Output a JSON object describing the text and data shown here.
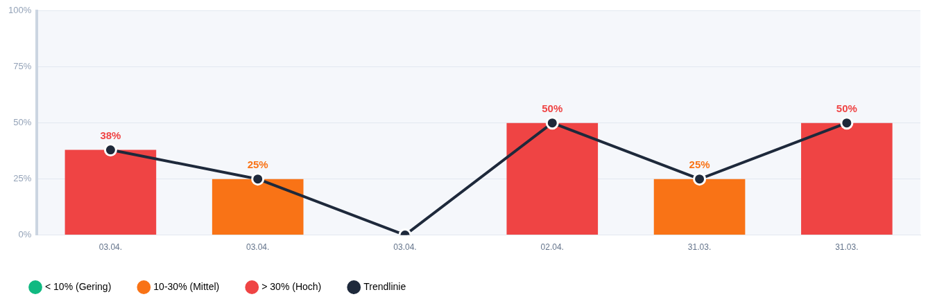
{
  "chart_data": {
    "type": "bar",
    "stacked": true,
    "categories": [
      "03.04.",
      "03.04.",
      "03.04.",
      "02.04.",
      "31.03.",
      "31.03."
    ],
    "ylim": [
      0,
      100
    ],
    "yticks": [
      {
        "value": 0,
        "label": "0%"
      },
      {
        "value": 25,
        "label": "25%"
      },
      {
        "value": 50,
        "label": "50%"
      },
      {
        "value": 75,
        "label": "75%"
      },
      {
        "value": 100,
        "label": "100%"
      }
    ],
    "grid": "y",
    "legend": "bottom left",
    "series": [
      {
        "name": "< 10% (Gering)",
        "color": "#10b981",
        "values": [
          null,
          null,
          0,
          null,
          null,
          null
        ]
      },
      {
        "name": "10-30% (Mittel)",
        "color": "#f97316",
        "values": [
          null,
          25,
          null,
          null,
          25,
          null
        ],
        "value_labels": [
          null,
          "25%",
          null,
          null,
          "25%",
          null
        ]
      },
      {
        "name": "> 30% (Hoch)",
        "color": "#ef4444",
        "values": [
          38,
          null,
          null,
          50,
          null,
          50
        ],
        "value_labels": [
          "38%",
          null,
          null,
          "50%",
          null,
          "50%"
        ]
      },
      {
        "name": "Trendlinie",
        "type": "line",
        "color": "#1e293b",
        "marker": "circle",
        "line_style": "solid",
        "values": [
          38,
          25,
          0,
          50,
          25,
          50
        ]
      }
    ]
  }
}
